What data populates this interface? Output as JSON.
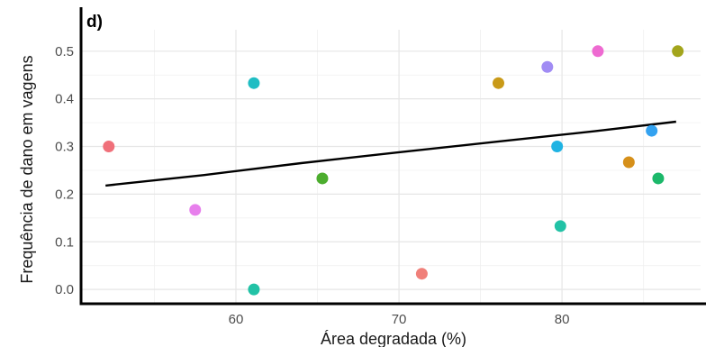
{
  "panel_label": "d)",
  "chart_data": {
    "type": "scatter",
    "title": "",
    "xlabel": "Área degradada (%)",
    "ylabel": "Frequência de dano em vagens",
    "xlim": [
      50.5,
      88.5
    ],
    "ylim": [
      -0.03,
      0.545
    ],
    "x_ticks": [
      60,
      70,
      80
    ],
    "x_tick_labels": [
      "60",
      "70",
      "80"
    ],
    "y_ticks": [
      0.0,
      0.1,
      0.2,
      0.3,
      0.4,
      0.5
    ],
    "y_tick_labels": [
      "0.0",
      "0.1",
      "0.2",
      "0.3",
      "0.4",
      "0.5"
    ],
    "grid": true,
    "legend": "none",
    "points": [
      {
        "x": 52.2,
        "y": 0.3,
        "color": "#f0707a"
      },
      {
        "x": 57.5,
        "y": 0.167,
        "color": "#e77fec"
      },
      {
        "x": 61.1,
        "y": 0.433,
        "color": "#1fbdc3"
      },
      {
        "x": 61.1,
        "y": 0.0,
        "color": "#22c2a6"
      },
      {
        "x": 65.3,
        "y": 0.233,
        "color": "#4cad2e"
      },
      {
        "x": 71.4,
        "y": 0.033,
        "color": "#f0807a"
      },
      {
        "x": 76.1,
        "y": 0.433,
        "color": "#c99a18"
      },
      {
        "x": 79.1,
        "y": 0.467,
        "color": "#a18cf4"
      },
      {
        "x": 79.7,
        "y": 0.3,
        "color": "#1fb3e3"
      },
      {
        "x": 79.9,
        "y": 0.133,
        "color": "#22c2a6"
      },
      {
        "x": 82.2,
        "y": 0.5,
        "color": "#ee6ad1"
      },
      {
        "x": 84.1,
        "y": 0.267,
        "color": "#d6901a"
      },
      {
        "x": 85.5,
        "y": 0.333,
        "color": "#33a2f0"
      },
      {
        "x": 85.9,
        "y": 0.233,
        "color": "#1cb86a"
      },
      {
        "x": 87.1,
        "y": 0.5,
        "color": "#a3a51c"
      }
    ],
    "trend_line": {
      "x": [
        52.0,
        58.0,
        64.0,
        70.0,
        76.0,
        82.0,
        87.0
      ],
      "y": [
        0.218,
        0.24,
        0.265,
        0.288,
        0.31,
        0.332,
        0.352
      ],
      "color": "#000000"
    }
  }
}
